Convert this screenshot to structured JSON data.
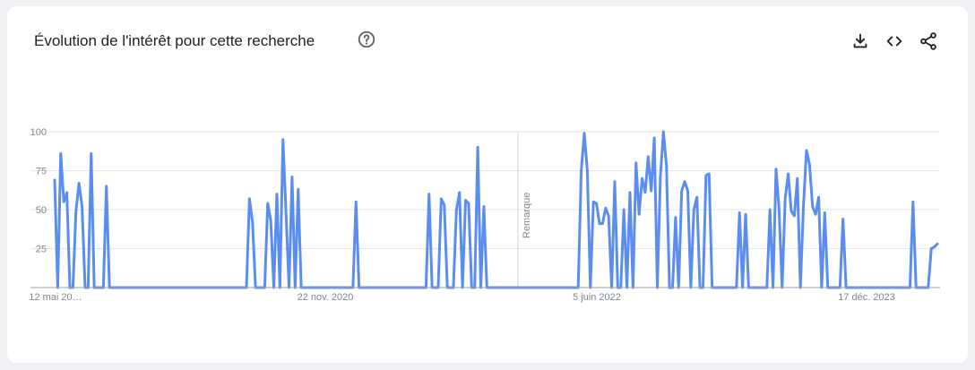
{
  "header": {
    "title": "Évolution de l'intérêt pour cette recherche",
    "help_icon": "help-circle-icon",
    "download_icon": "download-icon",
    "embed_icon": "code-embed-icon",
    "share_icon": "share-icon"
  },
  "chart_data": {
    "type": "line",
    "title": "Évolution de l'intérêt pour cette recherche",
    "xlabel": "",
    "ylabel": "",
    "ylim": [
      0,
      100
    ],
    "ytick_labels": [
      "100",
      "75",
      "50",
      "25"
    ],
    "xtick_labels": [
      "12 mai 20…",
      "22 nov. 2020",
      "5 juin 2022",
      "17 déc. 2023"
    ],
    "annotation": "Remarque",
    "grid": true,
    "legend": "none",
    "color": "#5b8def",
    "series": [
      {
        "values": [
          69,
          0,
          86,
          55,
          61,
          0,
          0,
          49,
          67,
          52,
          0,
          0,
          86,
          0,
          0,
          0,
          0,
          65,
          0,
          0,
          0,
          0,
          0,
          0,
          0,
          0,
          0,
          0,
          0,
          0,
          0,
          0,
          0,
          0,
          0,
          0,
          0,
          0,
          0,
          0,
          0,
          0,
          0,
          0,
          0,
          0,
          0,
          0,
          0,
          0,
          0,
          0,
          0,
          0,
          0,
          0,
          0,
          0,
          0,
          0,
          0,
          0,
          0,
          0,
          57,
          42,
          0,
          0,
          0,
          0,
          54,
          43,
          0,
          60,
          0,
          95,
          48,
          0,
          71,
          0,
          63,
          0,
          0,
          0,
          0,
          0,
          0,
          0,
          0,
          0,
          0,
          0,
          0,
          0,
          0,
          0,
          0,
          0,
          0,
          55,
          0,
          0,
          0,
          0,
          0,
          0,
          0,
          0,
          0,
          0,
          0,
          0,
          0,
          0,
          0,
          0,
          0,
          0,
          0,
          0,
          0,
          0,
          0,
          60,
          0,
          0,
          0,
          57,
          53,
          0,
          0,
          0,
          50,
          61,
          0,
          56,
          54,
          0,
          0,
          90,
          0,
          52,
          0,
          0,
          0,
          0,
          0,
          0,
          0,
          0,
          0,
          0,
          0,
          0,
          0,
          0,
          0,
          0,
          0,
          0,
          0,
          0,
          0,
          0,
          0,
          0,
          0,
          0,
          0,
          0,
          0,
          0,
          0,
          75,
          99,
          75,
          0,
          55,
          54,
          41,
          41,
          51,
          46,
          0,
          68,
          0,
          0,
          50,
          0,
          61,
          0,
          80,
          47,
          70,
          61,
          84,
          62,
          96,
          0,
          71,
          100,
          78,
          0,
          0,
          45,
          0,
          62,
          68,
          62,
          0,
          50,
          58,
          0,
          0,
          72,
          73,
          0,
          0,
          0,
          0,
          0,
          0,
          0,
          0,
          0,
          48,
          0,
          47,
          0,
          0,
          0,
          0,
          0,
          0,
          0,
          50,
          0,
          76,
          50,
          0,
          57,
          73,
          49,
          46,
          70,
          0,
          52,
          88,
          79,
          52,
          47,
          58,
          0,
          48,
          0,
          0,
          0,
          0,
          0,
          44,
          0,
          0,
          0,
          0,
          0,
          0,
          0,
          0,
          0,
          0,
          0,
          0,
          0,
          0,
          0,
          0,
          0,
          0,
          0,
          0,
          0,
          0,
          55,
          0,
          0,
          0,
          0,
          0,
          25,
          26,
          28
        ]
      }
    ]
  }
}
